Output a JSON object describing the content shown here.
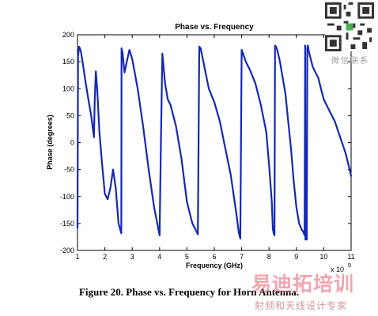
{
  "chart_data": {
    "type": "line",
    "title": "Phase vs. Frequency",
    "xlabel": "Frequency (GHz)",
    "ylabel": "Phase (degrees)",
    "x_multiplier_label": "x 10",
    "x_multiplier_exp": "9",
    "xlim": [
      1,
      11
    ],
    "ylim": [
      -200,
      200
    ],
    "xticks": [
      1,
      2,
      3,
      4,
      5,
      6,
      7,
      8,
      9,
      10,
      11
    ],
    "yticks": [
      200,
      150,
      100,
      50,
      0,
      -50,
      -100,
      -150,
      -200
    ],
    "grid": false,
    "series": [
      {
        "color": "#1428b4",
        "x": [
          1.0,
          1.02,
          1.06,
          1.12,
          1.2,
          1.3,
          1.4,
          1.5,
          1.6,
          1.63,
          1.67,
          1.72,
          1.8,
          1.9,
          2.0,
          2.1,
          2.2,
          2.3,
          2.4,
          2.5,
          2.6,
          2.61,
          2.65,
          2.72,
          2.8,
          2.9,
          3.0,
          3.2,
          3.4,
          3.6,
          3.8,
          4.0,
          4.05,
          4.1,
          4.2,
          4.3,
          4.4,
          4.6,
          4.8,
          5.0,
          5.2,
          5.4,
          5.45,
          5.5,
          5.6,
          5.7,
          5.8,
          6.0,
          6.2,
          6.4,
          6.6,
          6.8,
          6.9,
          6.95,
          7.0,
          7.05,
          7.15,
          7.3,
          7.5,
          7.7,
          7.9,
          8.0,
          8.1,
          8.14,
          8.17,
          8.2,
          8.22,
          8.25,
          8.3,
          8.4,
          8.5,
          8.6,
          8.7,
          8.8,
          8.9,
          9.0,
          9.1,
          9.2,
          9.25,
          9.3,
          9.32,
          9.33,
          9.36,
          9.38,
          9.4,
          9.42,
          9.45,
          9.5,
          9.55,
          9.6,
          9.7,
          9.8,
          9.9,
          10.0,
          10.2,
          10.4,
          10.6,
          10.8,
          10.9,
          11.0
        ],
        "y": [
          -158,
          160,
          178,
          170,
          145,
          110,
          80,
          50,
          10,
          80,
          132,
          100,
          20,
          -40,
          -95,
          -105,
          -85,
          -50,
          -85,
          -150,
          -168,
          175,
          165,
          130,
          150,
          172,
          155,
          100,
          30,
          -50,
          -120,
          -172,
          0,
          165,
          110,
          80,
          70,
          30,
          -30,
          -110,
          -150,
          -170,
          178,
          175,
          150,
          125,
          100,
          75,
          40,
          -10,
          -60,
          -130,
          -168,
          -178,
          172,
          165,
          150,
          135,
          110,
          70,
          20,
          -40,
          -110,
          -160,
          -168,
          -172,
          180,
          178,
          172,
          150,
          120,
          90,
          40,
          -10,
          -70,
          -120,
          -150,
          -162,
          -165,
          -172,
          180,
          -180,
          -178,
          -180,
          175,
          180,
          170,
          160,
          150,
          140,
          130,
          120,
          100,
          80,
          60,
          40,
          10,
          -20,
          -40,
          -62
        ]
      }
    ]
  },
  "caption": "Figure 20.  Phase vs. Frequency for Horn Antenna.",
  "watermark": {
    "qr_caption": "微信联系",
    "brand": "易迪拓培训",
    "tagline": "射频和天线设计专家"
  }
}
